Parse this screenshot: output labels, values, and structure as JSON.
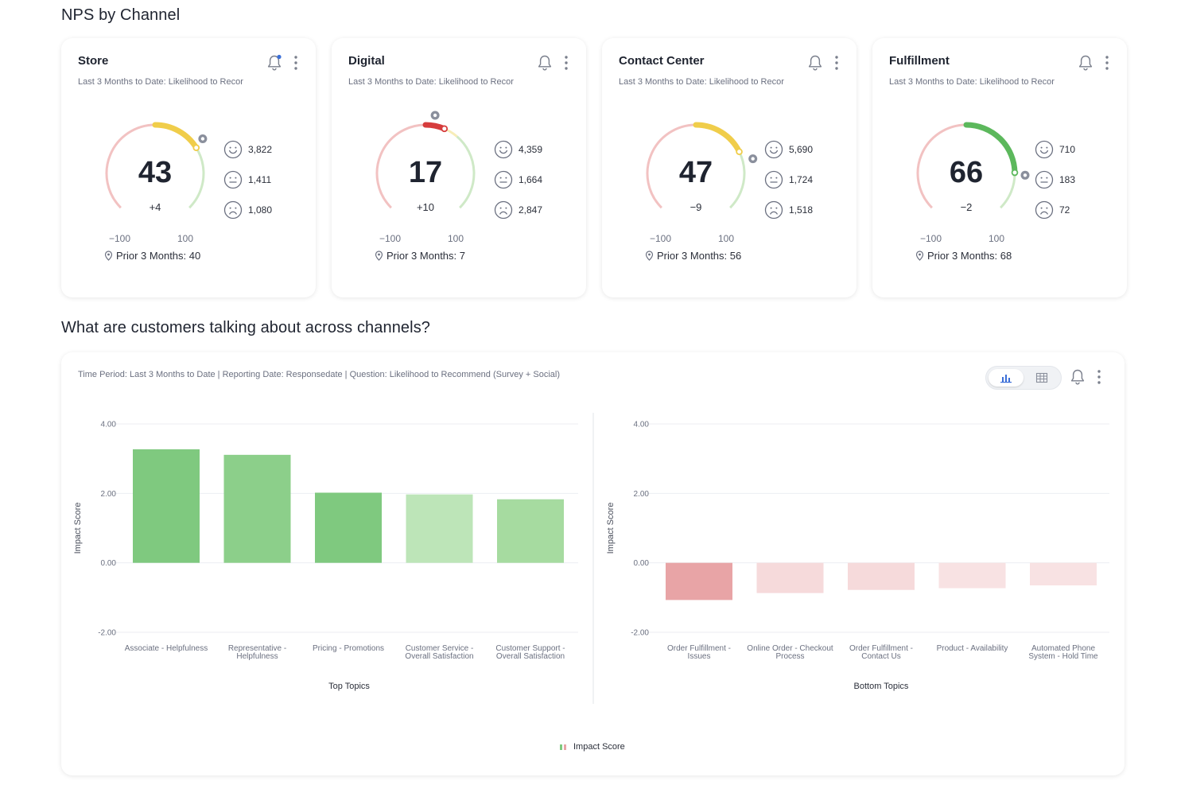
{
  "sections": {
    "nps_title": "NPS by Channel",
    "topics_title": "What are customers talking about across channels?"
  },
  "channels": [
    {
      "title": "Store",
      "subtitle": "Last 3 Months to Date: Likelihood to Recor",
      "score": 43,
      "score_text": "43",
      "delta": "+4",
      "gauge_min": "−100",
      "gauge_max": "100",
      "prior_value": 40,
      "prior": "Prior 3 Months: 40",
      "promoters": "3,822",
      "passives": "1,411",
      "detractors": "1,080",
      "score_color": "#f0cd4a",
      "bell_notification": true
    },
    {
      "title": "Digital",
      "subtitle": "Last 3 Months to Date: Likelihood to Recor",
      "score": 17,
      "score_text": "17",
      "delta": "+10",
      "gauge_min": "−100",
      "gauge_max": "100",
      "prior_value": 7,
      "prior": "Prior 3 Months: 7",
      "promoters": "4,359",
      "passives": "1,664",
      "detractors": "2,847",
      "score_color": "#d63c3c",
      "bell_notification": false
    },
    {
      "title": "Contact Center",
      "subtitle": "Last 3 Months to Date: Likelihood to Recor",
      "score": 47,
      "score_text": "47",
      "delta": "−9",
      "gauge_min": "−100",
      "gauge_max": "100",
      "prior_value": 56,
      "prior": "Prior 3 Months: 56",
      "promoters": "5,690",
      "passives": "1,724",
      "detractors": "1,518",
      "score_color": "#f0cd4a",
      "bell_notification": false
    },
    {
      "title": "Fulfillment",
      "subtitle": "Last 3 Months to Date: Likelihood to Recor",
      "score": 66,
      "score_text": "66",
      "delta": "−2",
      "gauge_min": "−100",
      "gauge_max": "100",
      "prior_value": 68,
      "prior": "Prior 3 Months: 68",
      "promoters": "710",
      "passives": "183",
      "detractors": "72",
      "score_color": "#5cb85c",
      "bell_notification": false
    }
  ],
  "icons": {
    "bell": "bell-icon",
    "kebab": "kebab-menu-icon",
    "promoter": "smile-face-icon",
    "passive": "neutral-face-icon",
    "detractor": "frown-face-icon",
    "prior": "location-pin-icon",
    "bar_view": "bar-chart-icon",
    "table_view": "table-icon"
  },
  "colors": {
    "accent": "#3b6fd8",
    "positive_bar": "#7fc97f",
    "negative_bar": "#e8a4a6",
    "gauge_red": "#f2c2c2",
    "gauge_yellow": "#f7edb8",
    "gauge_green": "#cfe9c7"
  },
  "topics_card": {
    "subtitle": "Time Period: Last 3 Months to Date | Reporting Date: Responsedate | Question: Likelihood to Recommend (Survey + Social)",
    "legend": "Impact Score"
  },
  "chart_data": [
    {
      "type": "bar",
      "title": "",
      "xlabel": "Top Topics",
      "ylabel": "Impact Score",
      "ylim": [
        -2,
        4
      ],
      "yticks": [
        "4.00",
        "2.00",
        "0.00",
        "-2.00"
      ],
      "ytick_values": [
        4,
        2,
        0,
        -2
      ],
      "categories": [
        [
          "Associate - Helpfulness"
        ],
        [
          "Representative -",
          "Helpfulness"
        ],
        [
          "Pricing - Promotions"
        ],
        [
          "Customer Service -",
          "Overall Satisfaction"
        ],
        [
          "Customer Support -",
          "Overall Satisfaction"
        ]
      ],
      "series": [
        {
          "values": [
            3.27,
            3.11,
            2.02,
            1.97,
            1.83
          ]
        }
      ],
      "colors": [
        "#7fc97f",
        "#8ccf8a",
        "#7fc97f",
        "#bde5b8",
        "#a6dba0"
      ],
      "grid": true
    },
    {
      "type": "bar",
      "title": "",
      "xlabel": "Bottom Topics",
      "ylabel": "Impact Score",
      "ylim": [
        -2,
        4
      ],
      "yticks": [
        "4.00",
        "2.00",
        "0.00",
        "-2.00"
      ],
      "ytick_values": [
        4,
        2,
        0,
        -2
      ],
      "categories": [
        [
          "Order Fulfillment -",
          "Issues"
        ],
        [
          "Online Order - Checkout",
          "Process"
        ],
        [
          "Order Fulfillment -",
          "Contact Us"
        ],
        [
          "Product - Availability"
        ],
        [
          "Automated Phone",
          "System - Hold Time"
        ]
      ],
      "series": [
        {
          "values": [
            -1.07,
            -0.87,
            -0.78,
            -0.73,
            -0.65
          ]
        }
      ],
      "colors": [
        "#e8a4a6",
        "#f6dadb",
        "#f6dadb",
        "#f8e2e3",
        "#f8e2e3"
      ],
      "grid": true
    }
  ]
}
